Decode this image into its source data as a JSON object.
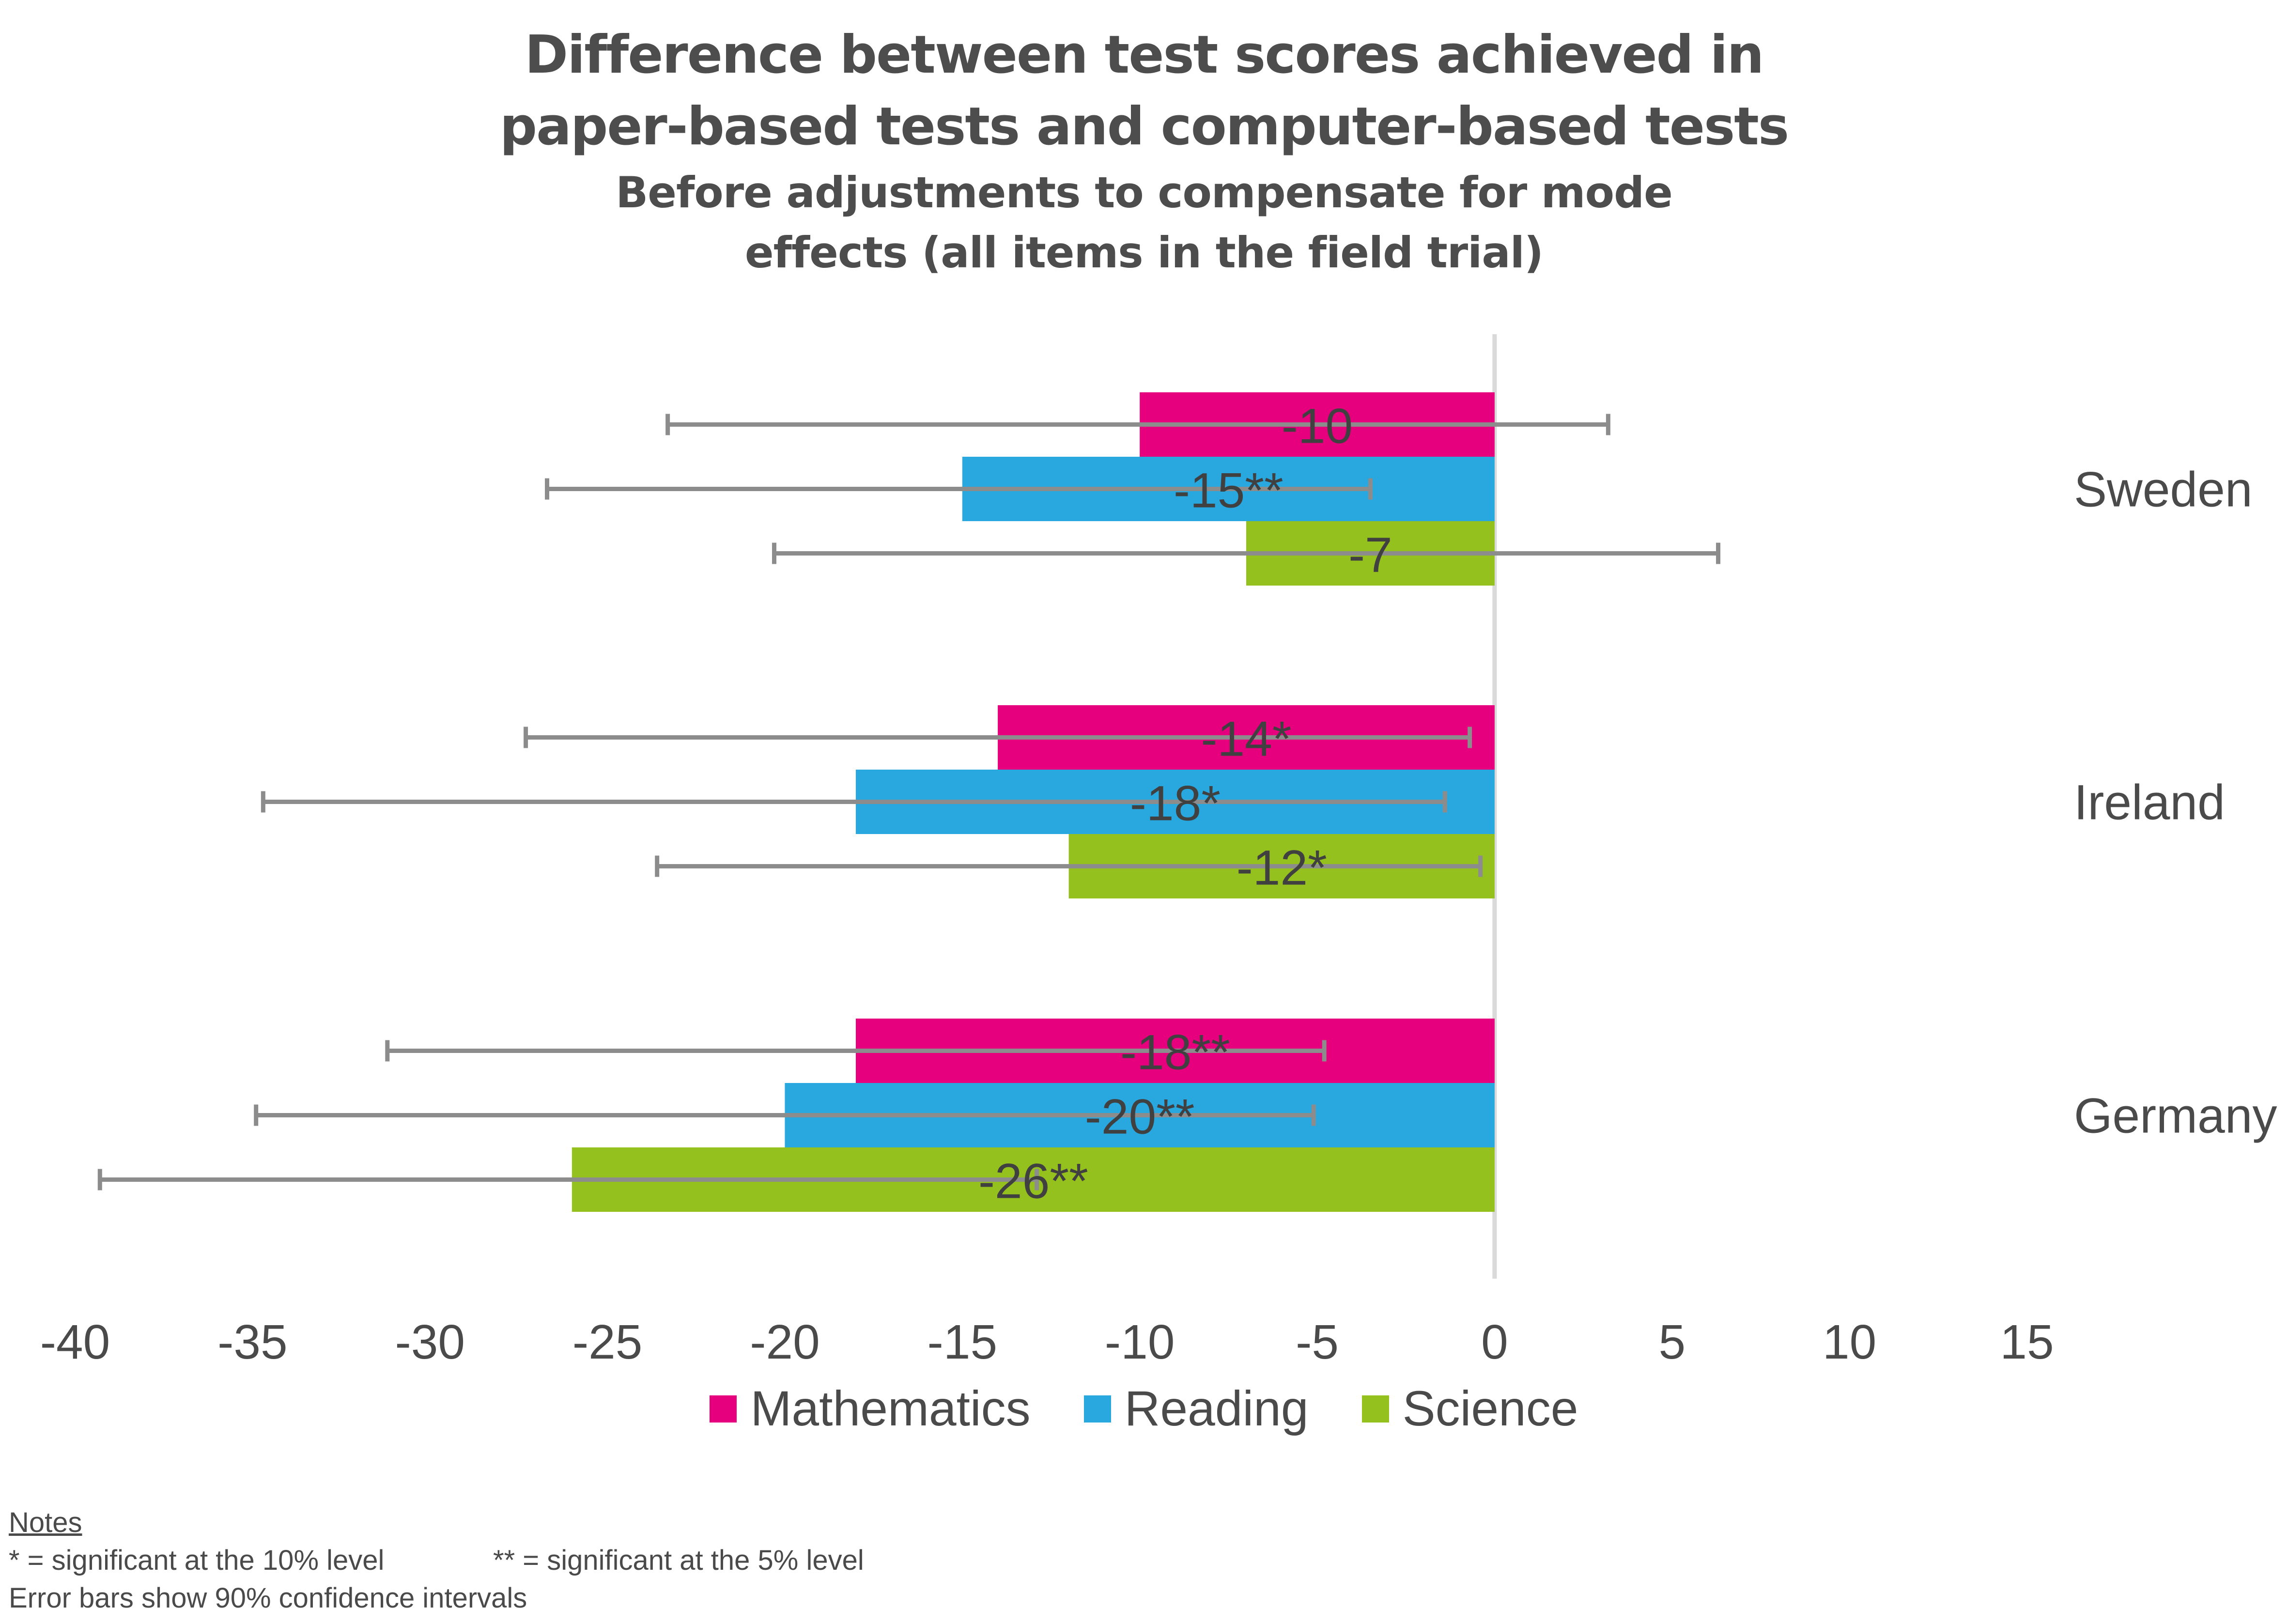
{
  "chart_data": {
    "type": "bar",
    "orientation": "horizontal",
    "title_lines": [
      "Difference between test scores achieved in",
      "paper-based tests and computer-based tests"
    ],
    "subtitle_lines": [
      "Before adjustments to compensate for mode",
      "effects (all items in the field trial)"
    ],
    "xlim": [
      -40,
      15
    ],
    "xticks": [
      "-40",
      "-35",
      "-30",
      "-25",
      "-20",
      "-15",
      "-10",
      "-5",
      "0",
      "5",
      "10",
      "15"
    ],
    "categories": [
      "Sweden",
      "Ireland",
      "Germany"
    ],
    "series": [
      {
        "name": "Mathematics",
        "color": "#e6007e",
        "values": [
          -10,
          -14,
          -18
        ],
        "labels": [
          "-10",
          "-14*",
          "-18**"
        ],
        "ci_low": [
          -23.3,
          -27.3,
          -31.2
        ],
        "ci_high": [
          3.2,
          -0.7,
          -4.8
        ]
      },
      {
        "name": "Reading",
        "color": "#29a8e0",
        "values": [
          -15,
          -18,
          -20
        ],
        "labels": [
          "-15**",
          "-18*",
          "-20**"
        ],
        "ci_low": [
          -26.7,
          -34.7,
          -34.9
        ],
        "ci_high": [
          -3.5,
          -1.4,
          -5.1
        ]
      },
      {
        "name": "Science",
        "color": "#95c11f",
        "values": [
          -7,
          -12,
          -26
        ],
        "labels": [
          "-7",
          "-12*",
          "-26**"
        ],
        "ci_low": [
          -20.3,
          -23.6,
          -39.3
        ],
        "ci_high": [
          6.3,
          -0.4,
          -12.9
        ]
      }
    ],
    "grid": false,
    "legend_position": "bottom"
  },
  "notes": {
    "heading": "Notes",
    "line1a": "* = significant at the 10% level",
    "line1b": "** = significant at the 5% level",
    "line2": "Error bars show 90% confidence intervals"
  }
}
